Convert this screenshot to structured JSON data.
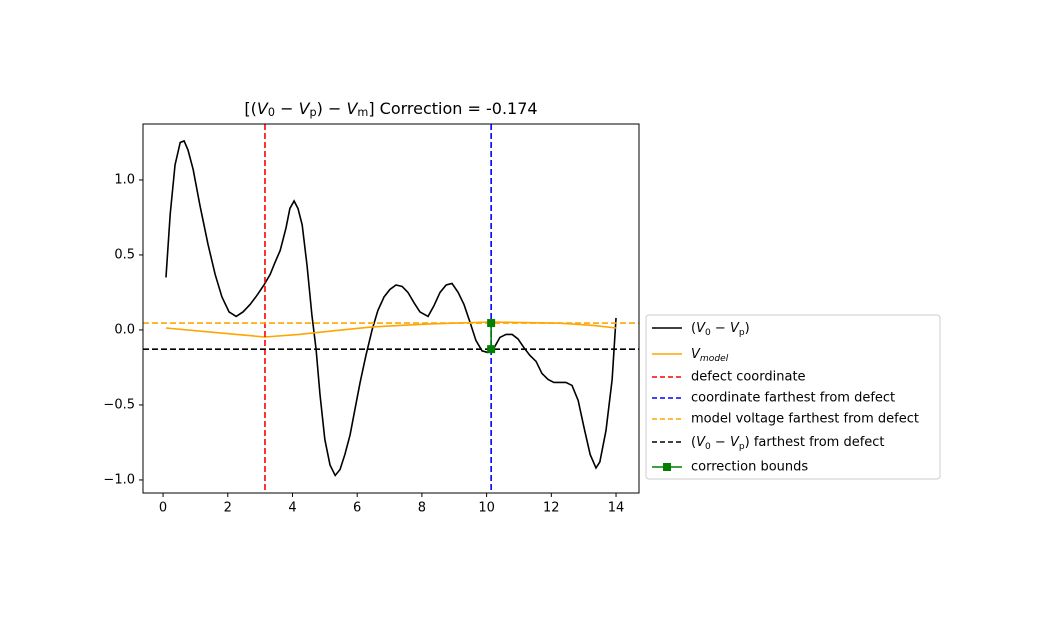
{
  "chart_data": {
    "type": "line",
    "title": "[(V_0 − V_p) − V_m] Correction = -0.174",
    "xlim": [
      -0.62,
      14.71
    ],
    "ylim": [
      -1.087,
      1.373
    ],
    "xticks": [
      0,
      2,
      4,
      6,
      8,
      10,
      12,
      14
    ],
    "yticks": [
      {
        "value": -1,
        "label": "−1.0"
      },
      {
        "value": -0.5,
        "label": "−0.5"
      },
      {
        "value": 0,
        "label": "0.0"
      },
      {
        "value": 0.5,
        "label": "0.5"
      },
      {
        "value": 1,
        "label": "1.0"
      }
    ],
    "series": [
      {
        "name": "(V_0 − V_p)",
        "color": "#000000",
        "x": [
          0.09,
          0.22,
          0.37,
          0.53,
          0.65,
          0.77,
          0.93,
          1.14,
          1.39,
          1.61,
          1.82,
          2.04,
          2.26,
          2.47,
          2.69,
          2.9,
          3.12,
          3.31,
          3.46,
          3.62,
          3.8,
          3.92,
          4.05,
          4.17,
          4.3,
          4.45,
          4.6,
          4.73,
          4.85,
          5.0,
          5.16,
          5.32,
          5.47,
          5.62,
          5.78,
          5.93,
          6.09,
          6.27,
          6.46,
          6.64,
          6.83,
          7.01,
          7.2,
          7.39,
          7.57,
          7.76,
          7.94,
          8.19,
          8.37,
          8.56,
          8.75,
          8.93,
          9.12,
          9.3,
          9.49,
          9.67,
          9.86,
          10.04,
          10.23,
          10.41,
          10.6,
          10.79,
          10.97,
          11.16,
          11.34,
          11.53,
          11.71,
          11.9,
          12.08,
          12.27,
          12.45,
          12.64,
          12.83,
          13.01,
          13.2,
          13.38,
          13.5,
          13.69,
          13.88,
          14.0
        ],
        "values": [
          0.35,
          0.77,
          1.1,
          1.25,
          1.26,
          1.2,
          1.07,
          0.83,
          0.57,
          0.37,
          0.22,
          0.12,
          0.09,
          0.12,
          0.17,
          0.23,
          0.3,
          0.37,
          0.45,
          0.53,
          0.68,
          0.81,
          0.86,
          0.81,
          0.7,
          0.43,
          0.1,
          -0.13,
          -0.43,
          -0.73,
          -0.9,
          -0.97,
          -0.93,
          -0.83,
          -0.7,
          -0.53,
          -0.35,
          -0.17,
          0.0,
          0.13,
          0.22,
          0.27,
          0.3,
          0.29,
          0.25,
          0.18,
          0.12,
          0.09,
          0.16,
          0.25,
          0.3,
          0.31,
          0.25,
          0.17,
          0.05,
          -0.07,
          -0.14,
          -0.15,
          -0.12,
          -0.05,
          -0.03,
          -0.03,
          -0.06,
          -0.12,
          -0.17,
          -0.21,
          -0.29,
          -0.33,
          -0.35,
          -0.35,
          -0.35,
          -0.37,
          -0.47,
          -0.65,
          -0.83,
          -0.92,
          -0.88,
          -0.67,
          -0.33,
          0.08
        ]
      },
      {
        "name": "V_model",
        "color": "#ffa500",
        "x": [
          0.09,
          1.5,
          3.15,
          4.2,
          5.3,
          6.46,
          8.25,
          10.1,
          12.27,
          13.3,
          14.0
        ],
        "values": [
          0.013,
          -0.015,
          -0.047,
          -0.03,
          -0.005,
          0.02,
          0.04,
          0.053,
          0.045,
          0.03,
          0.013
        ]
      }
    ],
    "vlines": [
      {
        "name": "defect coordinate",
        "color": "#ff0000",
        "value": 3.15
      },
      {
        "name": "coordinate farthest from defect",
        "color": "#0000ff",
        "value": 10.14
      }
    ],
    "hlines": [
      {
        "name": "model voltage farthest from defect",
        "color": "#ffa500",
        "value": 0.046
      },
      {
        "name": "(V_0 − V_p) farthest from defect",
        "color": "#000000",
        "value": -0.128
      }
    ],
    "bounds": {
      "name": "correction bounds",
      "color": "#008000",
      "x": 10.14,
      "values": [
        -0.128,
        0.046
      ]
    }
  }
}
